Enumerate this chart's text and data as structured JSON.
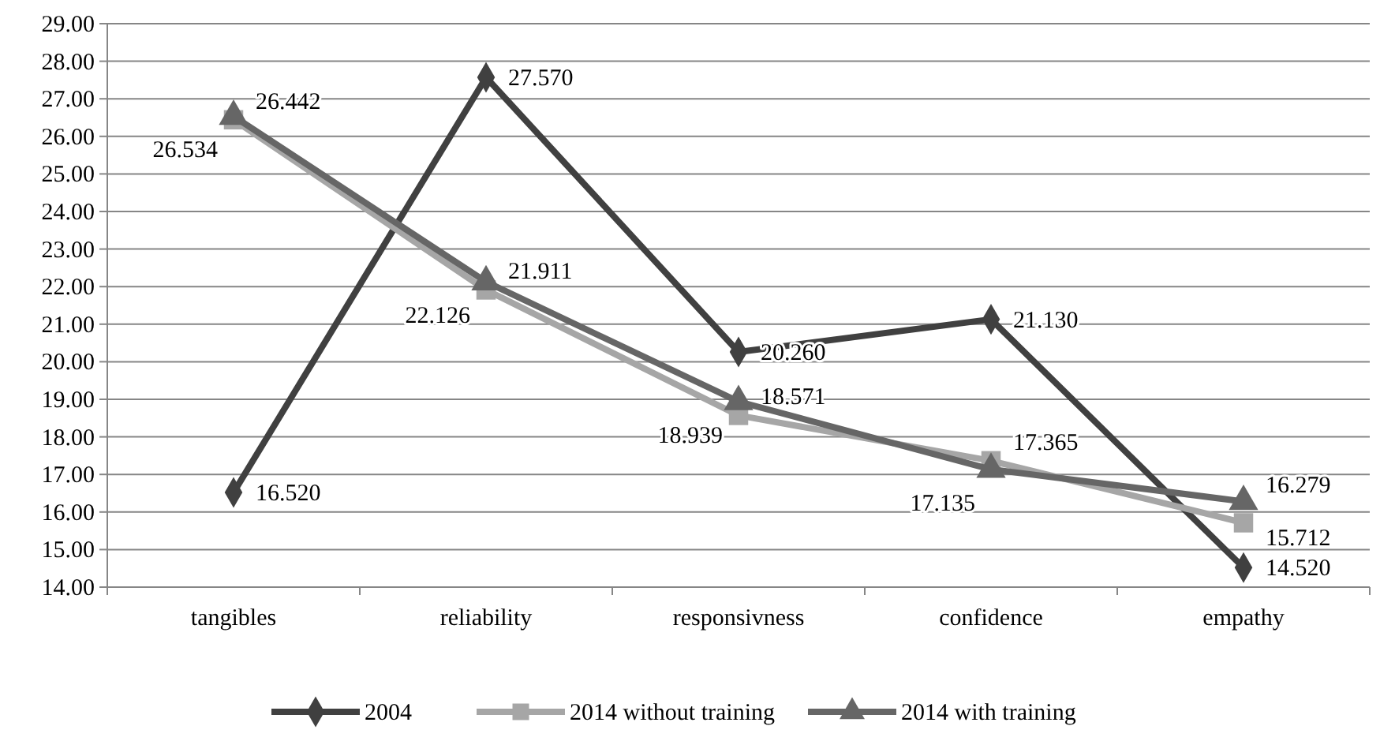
{
  "chart_data": {
    "type": "line",
    "categories": [
      "tangibles",
      "reliability",
      "responsivness",
      "confidence",
      "empathy"
    ],
    "series": [
      {
        "name": "2004",
        "color": "#404040",
        "marker": "diamond",
        "values": [
          16.52,
          27.57,
          20.26,
          21.13,
          14.52
        ],
        "value_labels": [
          "16.520",
          "27.570",
          "20.260",
          "21.130",
          "14.520"
        ]
      },
      {
        "name": "2014 without training",
        "color": "#a6a6a6",
        "marker": "square",
        "values": [
          26.442,
          21.911,
          18.571,
          17.365,
          15.712
        ],
        "value_labels": [
          "26.442",
          "21.911",
          "18.571",
          "17.365",
          "15.712"
        ]
      },
      {
        "name": "2014 with training",
        "color": "#666666",
        "marker": "triangle",
        "values": [
          26.534,
          22.126,
          18.939,
          17.135,
          16.279
        ],
        "value_labels": [
          "26.534",
          "22.126",
          "18.939",
          "17.135",
          "16.279"
        ]
      }
    ],
    "ylim": [
      14,
      29
    ],
    "yticks": [
      {
        "value": 14,
        "label": "14.00"
      },
      {
        "value": 15,
        "label": "15.00"
      },
      {
        "value": 16,
        "label": "16.00"
      },
      {
        "value": 17,
        "label": "17.00"
      },
      {
        "value": 18,
        "label": "18.00"
      },
      {
        "value": 19,
        "label": "19.00"
      },
      {
        "value": 20,
        "label": "20.00"
      },
      {
        "value": 21,
        "label": "21.00"
      },
      {
        "value": 22,
        "label": "22.00"
      },
      {
        "value": 23,
        "label": "23.00"
      },
      {
        "value": 24,
        "label": "24.00"
      },
      {
        "value": 25,
        "label": "25.00"
      },
      {
        "value": 26,
        "label": "26.00"
      },
      {
        "value": 27,
        "label": "27.00"
      },
      {
        "value": 28,
        "label": "28.00"
      },
      {
        "value": 29,
        "label": "29.00"
      }
    ],
    "grid": "y",
    "legend": "bottom",
    "line_style": "solid"
  }
}
